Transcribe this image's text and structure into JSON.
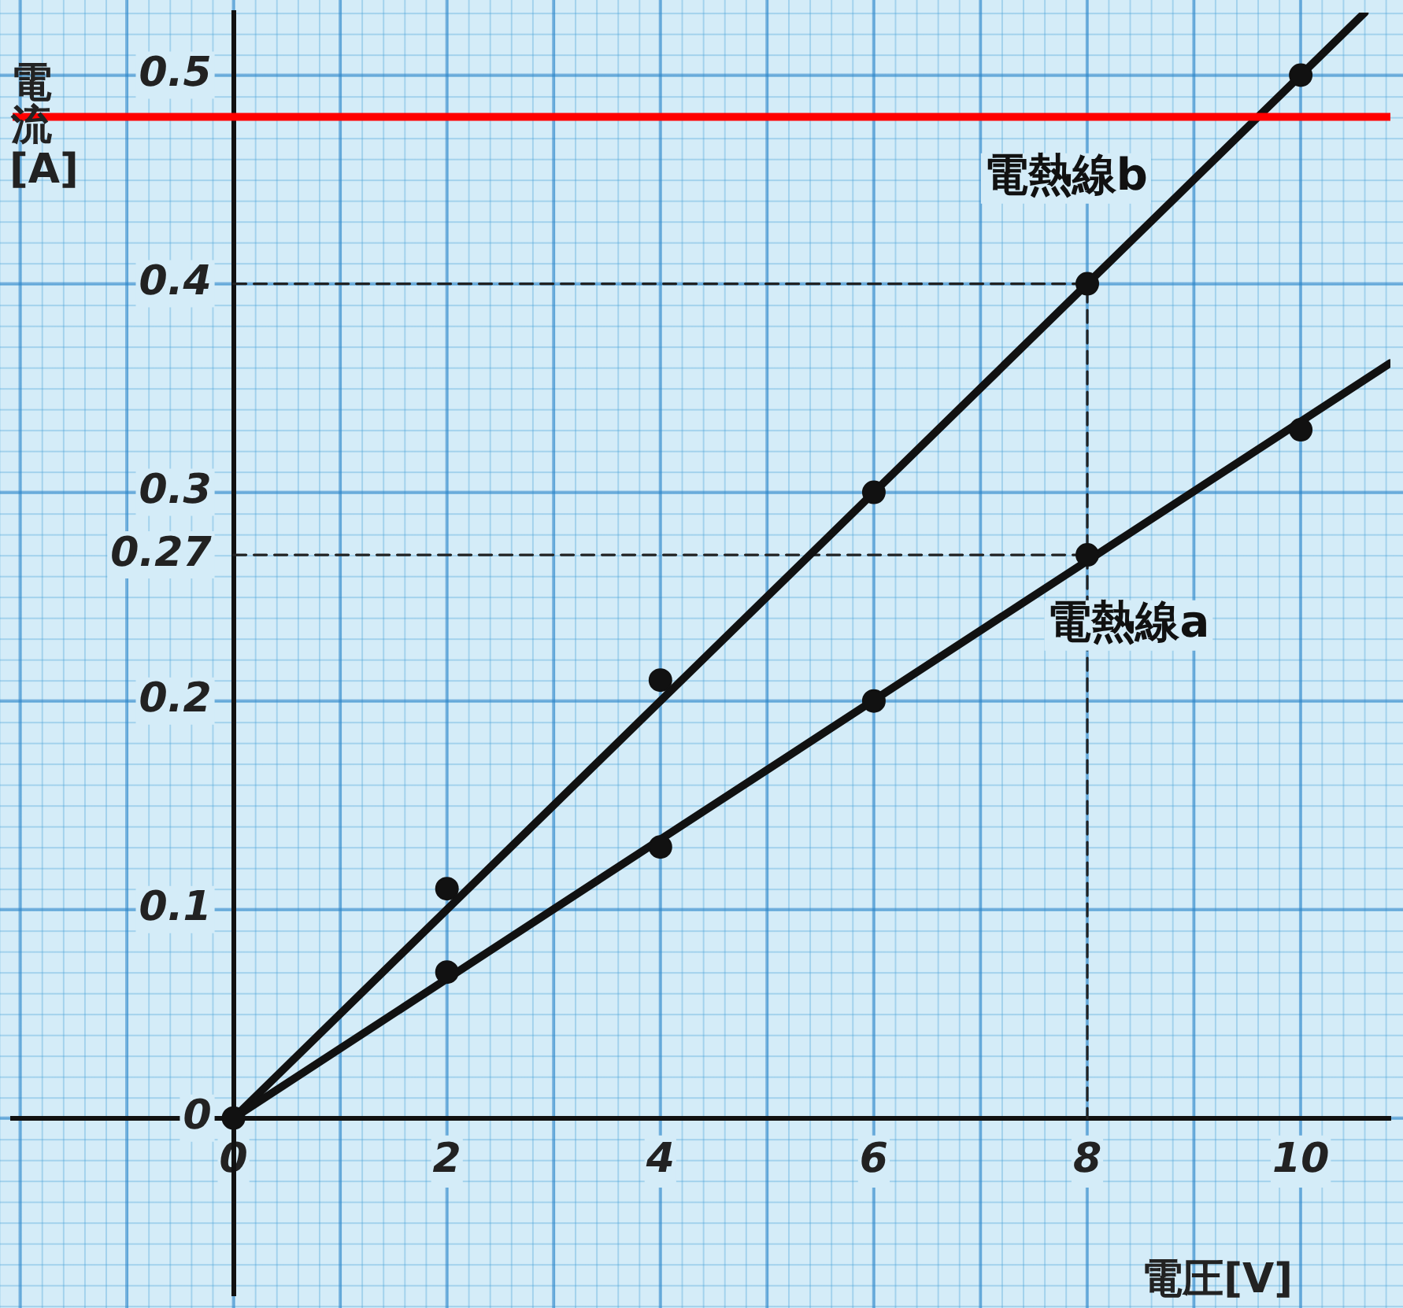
{
  "chart_data": {
    "type": "scatter",
    "xlabel": "電圧[V]",
    "ylabel": "電流[A]",
    "xlim": [
      -2.07,
      10.84
    ],
    "ylim": [
      -0.085,
      0.53
    ],
    "xticks": [
      0,
      2,
      4,
      6,
      8,
      10
    ],
    "yticks": [
      0,
      0.1,
      0.2,
      0.27,
      0.3,
      0.4,
      0.5
    ],
    "legend": false,
    "series": [
      {
        "color": "#111111",
        "marker": "circle",
        "x": [
          2,
          4,
          6,
          8,
          10
        ],
        "values": [
          0.07,
          0.13,
          0.2,
          0.27,
          0.33
        ]
      },
      {
        "color": "#111111",
        "marker": "circle",
        "x": [
          0,
          2,
          4,
          6,
          8,
          10
        ],
        "values": [
          0,
          0.11,
          0.21,
          0.3,
          0.4,
          0.5
        ]
      },
      {
        "type": "line",
        "name": "電熱線a",
        "color": "#111111",
        "marker": "none",
        "line_style": "solid",
        "x": [
          0,
          10.84
        ],
        "values": [
          0,
          0.362
        ]
      },
      {
        "type": "line",
        "name": "電熱線b",
        "color": "#111111",
        "marker": "none",
        "line_style": "solid",
        "x": [
          0,
          10.6
        ],
        "values": [
          0,
          0.53
        ]
      },
      {
        "type": "line",
        "color": "#222222",
        "marker": "none",
        "line_style": "dashed",
        "x": [
          0,
          8,
          8
        ],
        "values": [
          0.4,
          0.4,
          0
        ]
      },
      {
        "type": "line",
        "color": "#222222",
        "marker": "none",
        "line_style": "dashed",
        "x": [
          0,
          8
        ],
        "values": [
          0.27,
          0.27
        ]
      }
    ],
    "ref_lines": [
      {
        "axis": "y",
        "value": 0.48,
        "color": "#ff0000"
      }
    ]
  }
}
